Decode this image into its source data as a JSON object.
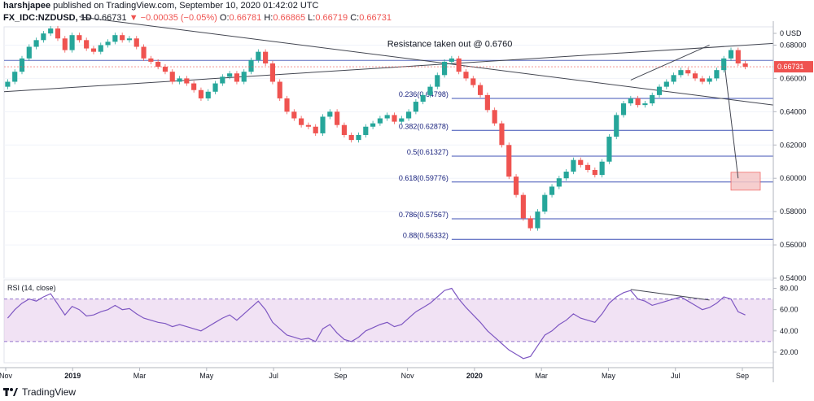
{
  "header": {
    "publisher": "harshjapee",
    "published_line": " published on TradingView.com, September 10, 2020 01:42:02 UTC",
    "symbol": "FX_IDC:NZDUSD, 1D",
    "last": "0.66731",
    "change_arrow": "▼",
    "change": "−0.00035 (−0.05%)",
    "o_label": "O:",
    "o": "0.66781",
    "h_label": "H:",
    "h": "0.66865",
    "l_label": "L:",
    "l": "0.66719",
    "c_label": "C:",
    "c": "0.66731"
  },
  "footer": {
    "brand": "TradingView"
  },
  "colors": {
    "up": "#26a69a",
    "up_bright": "#4caf50",
    "down": "#ef5350",
    "fib": "#3f51b5",
    "rsi": "#7e57c2",
    "rsi_band": "#e1bee7",
    "price_label_bg": "#ef5350",
    "box": "#f5c6c6"
  },
  "chart_data": [
    {
      "type": "line",
      "title": "FX_IDC:NZDUSD, 1D",
      "ylabel": "USD",
      "ylim": [
        0.54,
        0.69
      ],
      "price_axis_ticks": [
        "USD",
        "0.68000",
        "0.66000",
        "0.64000",
        "0.62000",
        "0.60000",
        "0.58000",
        "0.56000",
        "0.54000"
      ],
      "current_price_label": "0.66731",
      "x_tick_labels": [
        "Nov",
        "2019",
        "Mar",
        "May",
        "Jul",
        "Sep",
        "Nov",
        "2020",
        "Mar",
        "May",
        "Jul",
        "Sep"
      ],
      "series": [
        {
          "values": [
            0.658,
            0.664,
            0.672,
            0.679,
            0.683,
            0.687,
            0.69,
            0.684,
            0.677,
            0.686,
            0.683,
            0.678,
            0.676,
            0.68,
            0.682,
            0.686,
            0.683,
            0.684,
            0.679,
            0.672,
            0.67,
            0.667,
            0.664,
            0.658,
            0.66,
            0.657,
            0.653,
            0.648,
            0.652,
            0.657,
            0.661,
            0.663,
            0.658,
            0.664,
            0.671,
            0.676,
            0.669,
            0.658,
            0.648,
            0.64,
            0.636,
            0.632,
            0.631,
            0.627,
            0.637,
            0.64,
            0.632,
            0.626,
            0.623,
            0.626,
            0.631,
            0.633,
            0.636,
            0.638,
            0.634,
            0.636,
            0.64,
            0.646,
            0.65,
            0.655,
            0.662,
            0.67,
            0.672,
            0.664,
            0.66,
            0.656,
            0.65,
            0.641,
            0.633,
            0.62,
            0.601,
            0.59,
            0.576,
            0.57,
            0.58,
            0.59,
            0.595,
            0.6,
            0.604,
            0.611,
            0.608,
            0.605,
            0.602,
            0.61,
            0.625,
            0.638,
            0.645,
            0.648,
            0.644,
            0.645,
            0.65,
            0.655,
            0.658,
            0.662,
            0.665,
            0.663,
            0.66,
            0.658,
            0.66,
            0.665,
            0.672,
            0.677,
            0.669,
            0.667
          ]
        }
      ],
      "annotations": [
        "Resistance taken out @ 0.6760"
      ],
      "fib_levels": [
        {
          "label": "0.236(0.64798)",
          "value": 0.64798
        },
        {
          "label": "0.382(0.62878)",
          "value": 0.62878
        },
        {
          "label": "0.5(0.61327)",
          "value": 0.61327
        },
        {
          "label": "0.618(0.59776)",
          "value": 0.59776
        },
        {
          "label": "0.786(0.57567)",
          "value": 0.57567
        },
        {
          "label": "0.88(0.56332)",
          "value": 0.56332
        }
      ],
      "horizontal_level": 0.6708
    },
    {
      "type": "line",
      "title": "RSI (14, close)",
      "ylim": [
        10,
        85
      ],
      "y_tick_labels": [
        "80.00",
        "60.00",
        "40.00",
        "20.00"
      ],
      "band": [
        30,
        70
      ],
      "series": [
        {
          "values": [
            52,
            60,
            66,
            70,
            68,
            72,
            75,
            65,
            55,
            63,
            60,
            54,
            55,
            58,
            60,
            64,
            60,
            61,
            56,
            52,
            50,
            48,
            47,
            44,
            46,
            44,
            42,
            40,
            44,
            48,
            52,
            55,
            50,
            56,
            62,
            68,
            60,
            48,
            42,
            36,
            34,
            32,
            33,
            30,
            42,
            46,
            38,
            32,
            30,
            34,
            40,
            43,
            46,
            48,
            44,
            46,
            52,
            58,
            62,
            66,
            72,
            78,
            80,
            70,
            62,
            55,
            48,
            40,
            34,
            28,
            22,
            18,
            14,
            16,
            26,
            36,
            40,
            46,
            50,
            56,
            52,
            50,
            48,
            56,
            66,
            72,
            76,
            78,
            70,
            68,
            64,
            66,
            68,
            70,
            72,
            68,
            64,
            60,
            62,
            66,
            72,
            70,
            58,
            55
          ]
        }
      ]
    }
  ]
}
